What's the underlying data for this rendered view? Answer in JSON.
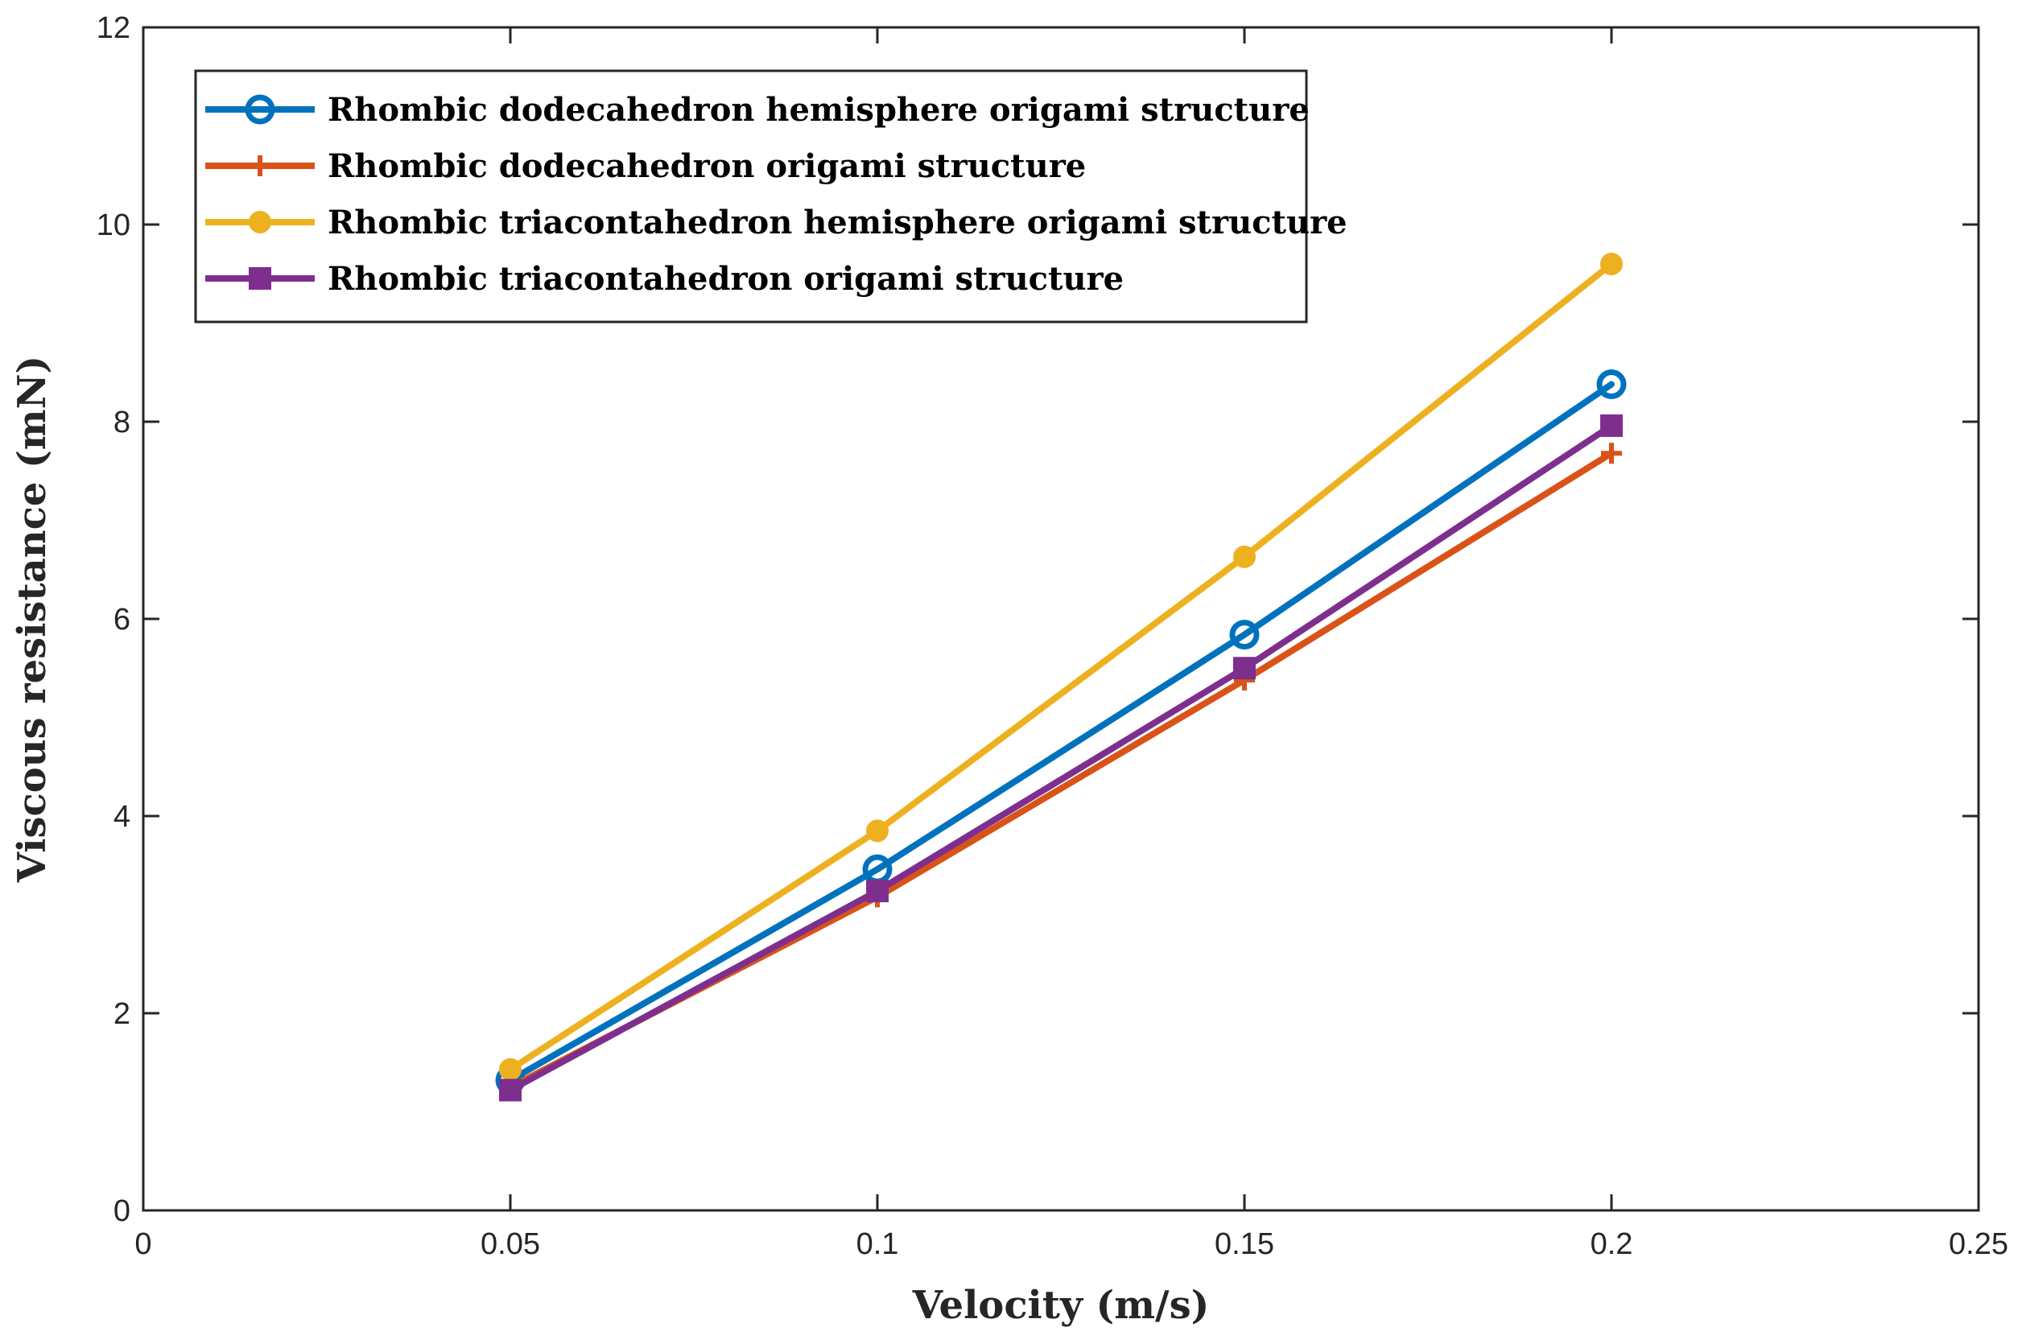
{
  "chart_data": {
    "type": "line",
    "title": "",
    "xlabel": "Velocity (m/s)",
    "ylabel": "Viscous resistance (mN)",
    "xlim": [
      0,
      0.25
    ],
    "ylim": [
      0,
      12
    ],
    "xticks": [
      0,
      0.05,
      0.1,
      0.15,
      0.2,
      0.25
    ],
    "xtick_labels": [
      "0",
      "0.05",
      "0.1",
      "0.15",
      "0.2",
      "0.25"
    ],
    "yticks": [
      0,
      2,
      4,
      6,
      8,
      10,
      12
    ],
    "ytick_labels": [
      "0",
      "2",
      "4",
      "6",
      "8",
      "10",
      "12"
    ],
    "grid": false,
    "legend_position": "top-left",
    "x": [
      0.05,
      0.1,
      0.15,
      0.2
    ],
    "series": [
      {
        "name": "Rhombic dodecahedron hemisphere origami structure",
        "values": [
          1.32,
          3.46,
          5.84,
          8.38
        ],
        "color": "#0072BD",
        "marker": "circle-open"
      },
      {
        "name": "Rhombic dodecahedron origami structure",
        "values": [
          1.25,
          3.18,
          5.38,
          7.68
        ],
        "color": "#D95319",
        "marker": "plus"
      },
      {
        "name": "Rhombic triacontahedron hemisphere origami structure",
        "values": [
          1.43,
          3.85,
          6.63,
          9.6
        ],
        "color": "#EDB120",
        "marker": "circle-filled"
      },
      {
        "name": "Rhombic triacontahedron origami structure",
        "values": [
          1.22,
          3.24,
          5.5,
          7.96
        ],
        "color": "#7E2F8E",
        "marker": "square-filled"
      }
    ]
  }
}
